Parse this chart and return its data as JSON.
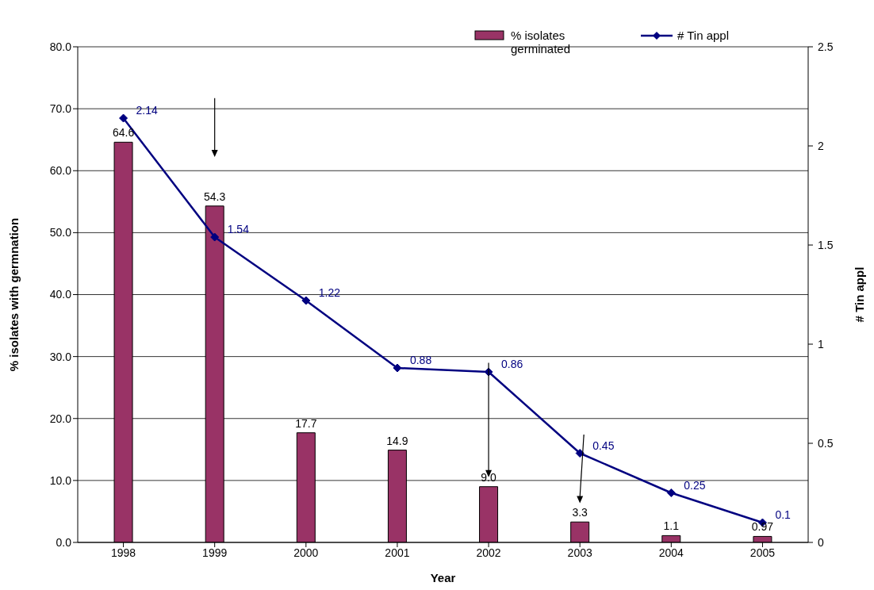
{
  "chart_data": {
    "type": "bar",
    "xlabel": "Year",
    "ylabel": "% isolates with germnation",
    "y2label": "# Tin appl",
    "categories": [
      "1998",
      "1999",
      "2000",
      "2001",
      "2002",
      "2003",
      "2004",
      "2005"
    ],
    "series": [
      {
        "name": "% isolates germinated",
        "color": "#993366",
        "values": [
          64.6,
          54.3,
          17.7,
          14.9,
          9.0,
          3.3,
          1.1,
          0.97
        ],
        "value_labels": [
          "64.6",
          "54.3",
          "17.7",
          "14.9",
          "9.0",
          "3.3",
          "1.1",
          "0.97"
        ]
      },
      {
        "name": "# Tin appl",
        "type": "line",
        "axis": "y2",
        "color": "#000080",
        "marker": "diamond",
        "values": [
          2.14,
          1.54,
          1.22,
          0.88,
          0.86,
          0.45,
          0.25,
          0.1
        ],
        "value_labels": [
          "2.14",
          "1.54",
          "1.22",
          "0.88",
          "0.86",
          "0.45",
          "0.25",
          "0.1"
        ]
      }
    ],
    "ylim": [
      0,
      80
    ],
    "yticks": [
      {
        "value": 0,
        "label": "0.0"
      },
      {
        "value": 10,
        "label": "10.0"
      },
      {
        "value": 20,
        "label": "20.0"
      },
      {
        "value": 30,
        "label": "30.0"
      },
      {
        "value": 40,
        "label": "40.0"
      },
      {
        "value": 50,
        "label": "50.0"
      },
      {
        "value": 60,
        "label": "60.0"
      },
      {
        "value": 70,
        "label": "70.0"
      },
      {
        "value": 80,
        "label": "80.0"
      }
    ],
    "y2lim": [
      0,
      2.5
    ],
    "y2ticks": [
      0,
      0.5,
      1,
      1.5,
      2,
      2.5
    ],
    "grid": "y",
    "legend": "top right"
  }
}
